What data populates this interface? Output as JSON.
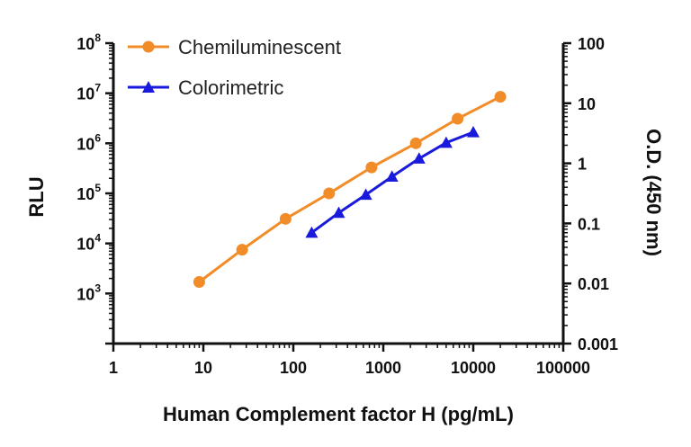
{
  "chart_data": {
    "type": "line",
    "x_axis": {
      "label": "Human Complement factor H (pg/mL)",
      "scale": "log",
      "range": [
        1,
        100000
      ],
      "ticks": [
        1,
        10,
        100,
        1000,
        10000,
        100000
      ],
      "tick_labels": [
        "1",
        "10",
        "100",
        "1000",
        "10000",
        "100000"
      ]
    },
    "y_axis_left": {
      "label": "RLU",
      "scale": "log",
      "range": [
        100,
        100000000
      ],
      "ticks": [
        1000,
        10000,
        100000,
        1000000,
        10000000,
        100000000
      ],
      "tick_labels": [
        {
          "base": "10",
          "exp": "3"
        },
        {
          "base": "10",
          "exp": "4"
        },
        {
          "base": "10",
          "exp": "5"
        },
        {
          "base": "10",
          "exp": "6"
        },
        {
          "base": "10",
          "exp": "7"
        },
        {
          "base": "10",
          "exp": "8"
        }
      ]
    },
    "y_axis_right": {
      "label": "O.D. (450 nm)",
      "scale": "log",
      "range": [
        0.001,
        100
      ],
      "ticks": [
        0.001,
        0.01,
        0.1,
        1,
        10,
        100
      ],
      "tick_labels": [
        "0.001",
        "0.01",
        "0.1",
        "1",
        "10",
        "100"
      ]
    },
    "grid": false,
    "legend_position": "top-left",
    "series": [
      {
        "name": "Chemiluminescent",
        "axis": "left",
        "color": "#f28c28",
        "marker": "circle",
        "x": [
          9,
          27,
          82,
          250,
          740,
          2300,
          6700,
          20000
        ],
        "y": [
          1700,
          7500,
          31000,
          100000,
          330000,
          1000000,
          3100000,
          8500000
        ]
      },
      {
        "name": "Colorimetric",
        "axis": "right",
        "color": "#1a1adc",
        "marker": "triangle",
        "x": [
          160,
          320,
          640,
          1250,
          2500,
          5000,
          10000
        ],
        "y": [
          0.07,
          0.15,
          0.3,
          0.6,
          1.2,
          2.2,
          3.3
        ]
      }
    ]
  }
}
